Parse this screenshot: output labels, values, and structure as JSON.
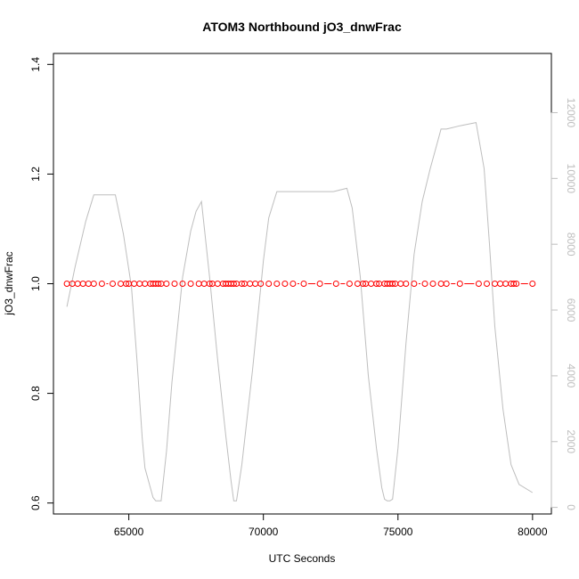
{
  "chart_data": {
    "type": "line",
    "title": "ATOM3 Northbound jO3_dnwFrac",
    "xlabel": "UTC Seconds",
    "ylabel": "jO3_dnwFrac",
    "xlim": [
      62200,
      80700
    ],
    "ylim": [
      0.58,
      1.42
    ],
    "y2lim": [
      -200,
      13800
    ],
    "x_ticks": [
      65000,
      70000,
      75000,
      80000
    ],
    "x_tick_labels": [
      "65000",
      "70000",
      "75000",
      "80000"
    ],
    "y_ticks": [
      0.6,
      0.8,
      1.0,
      1.2,
      1.4
    ],
    "y_tick_labels": [
      "0.6",
      "0.8",
      "1.0",
      "1.2",
      "1.4"
    ],
    "y2_ticks": [
      0,
      2000,
      4000,
      6000,
      8000,
      10000,
      12000
    ],
    "y2_tick_labels": [
      "0",
      "2000",
      "4000",
      "6000",
      "8000",
      "10000",
      "12000"
    ],
    "grid": false,
    "colors": {
      "series": "#ff0000",
      "altitude": "#bebebe",
      "axis": "#000000"
    },
    "series": [
      {
        "axis": "left",
        "style": "points-and-dashes",
        "x": [
          62700,
          62900,
          63100,
          63300,
          63500,
          63700,
          64000,
          64400,
          64700,
          64900,
          65000,
          65200,
          65400,
          65600,
          65800,
          65900,
          66000,
          66100,
          66200,
          66400,
          66700,
          67000,
          67300,
          67600,
          67800,
          68000,
          68100,
          68300,
          68500,
          68600,
          68700,
          68800,
          68900,
          69000,
          69200,
          69300,
          69500,
          69700,
          69900,
          70200,
          70500,
          70800,
          71100,
          71500,
          72100,
          72700,
          73200,
          73500,
          73700,
          73800,
          74000,
          74200,
          74300,
          74500,
          74600,
          74700,
          74800,
          74900,
          75100,
          75300,
          75600,
          76000,
          76300,
          76600,
          76800,
          77300,
          78000,
          78300,
          78600,
          78800,
          79000,
          79200,
          79300,
          79400,
          80000
        ],
        "y": [
          1.0,
          1.0,
          1.0,
          1.0,
          1.0,
          1.0,
          1.0,
          1.0,
          1.0,
          1.0,
          1.0,
          1.0,
          1.0,
          1.0,
          1.0,
          1.0,
          1.0,
          1.0,
          1.0,
          1.0,
          1.0,
          1.0,
          1.0,
          1.0,
          1.0,
          1.0,
          1.0,
          1.0,
          1.0,
          1.0,
          1.0,
          1.0,
          1.0,
          1.0,
          1.0,
          1.0,
          1.0,
          1.0,
          1.0,
          1.0,
          1.0,
          1.0,
          1.0,
          1.0,
          1.0,
          1.0,
          1.0,
          1.0,
          1.0,
          1.0,
          1.0,
          1.0,
          1.0,
          1.0,
          1.0,
          1.0,
          1.0,
          1.0,
          1.0,
          1.0,
          1.0,
          1.0,
          1.0,
          1.0,
          1.0,
          1.0,
          1.0,
          1.0,
          1.0,
          1.0,
          1.0,
          1.0,
          1.0,
          1.0,
          1.0
        ]
      },
      {
        "axis": "right",
        "style": "line",
        "x": [
          62700,
          62800,
          63000,
          63400,
          63700,
          64100,
          64300,
          64500,
          64800,
          65100,
          65300,
          65500,
          65600,
          65800,
          65900,
          66000,
          66100,
          66200,
          66400,
          66600,
          67000,
          67300,
          67500,
          67700,
          68000,
          68300,
          68600,
          68800,
          68900,
          69000,
          69200,
          69600,
          70000,
          70200,
          70500,
          71000,
          72000,
          72600,
          73100,
          73300,
          73600,
          73900,
          74200,
          74400,
          74500,
          74600,
          74700,
          74800,
          75000,
          75300,
          75600,
          75900,
          76200,
          76500,
          76600,
          76800,
          77300,
          77900,
          78200,
          78400,
          78600,
          78900,
          79200,
          79500,
          80000
        ],
        "y": [
          6100,
          6500,
          7300,
          8700,
          9500,
          9500,
          9500,
          9500,
          8300,
          6700,
          4500,
          2100,
          1200,
          600,
          300,
          200,
          200,
          200,
          1700,
          3800,
          7000,
          8400,
          9000,
          9300,
          7000,
          4500,
          2200,
          800,
          200,
          200,
          1300,
          4200,
          7500,
          8800,
          9600,
          9600,
          9600,
          9600,
          9700,
          9100,
          7000,
          4000,
          1800,
          600,
          250,
          200,
          200,
          250,
          1800,
          5000,
          7700,
          9300,
          10300,
          11200,
          11500,
          11500,
          11600,
          11700,
          10300,
          8000,
          5500,
          3000,
          1300,
          700,
          450
        ]
      }
    ]
  }
}
